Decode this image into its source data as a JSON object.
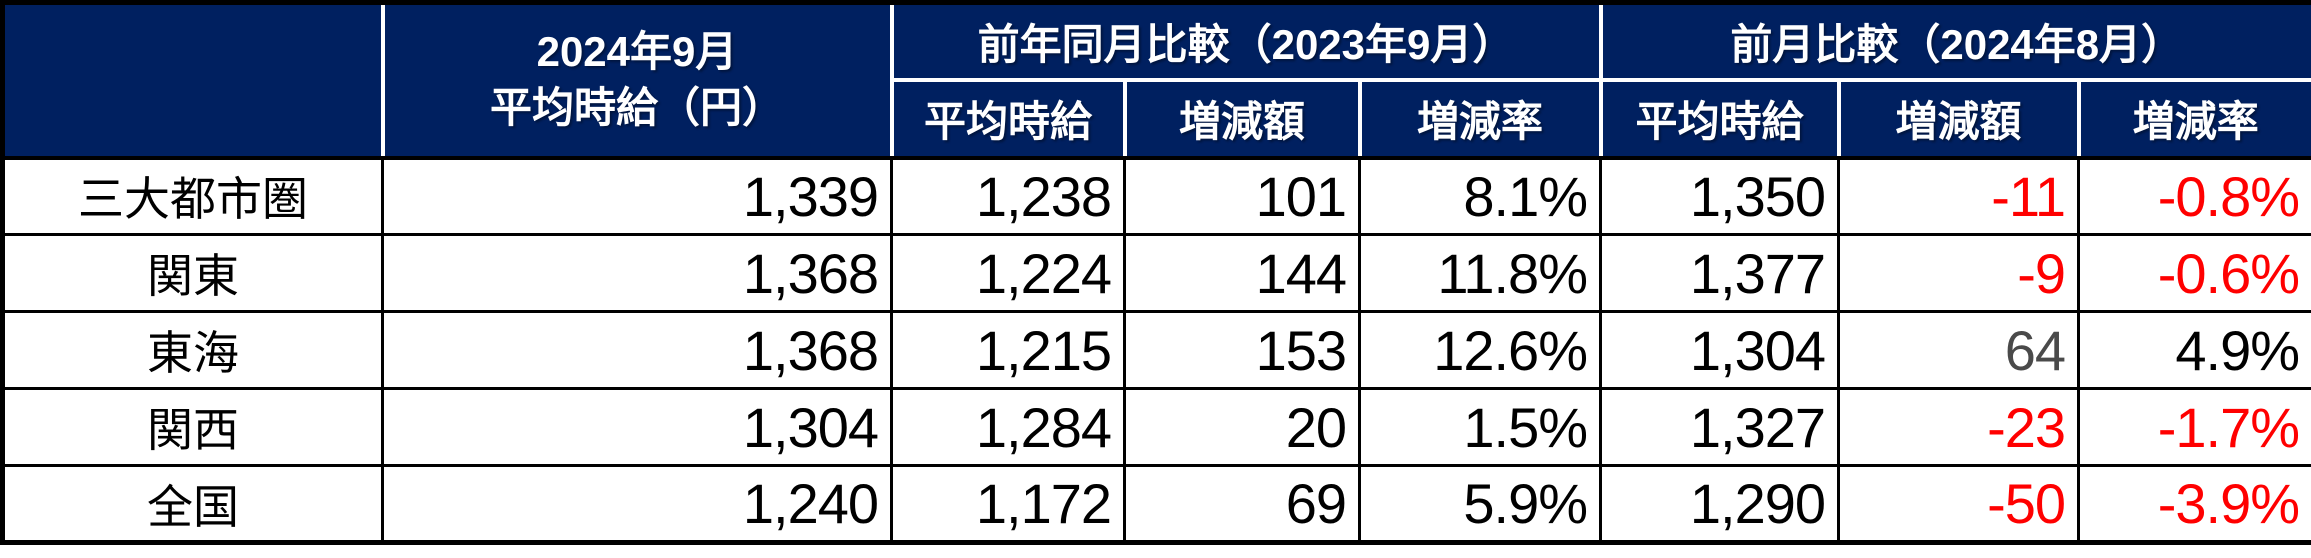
{
  "colors": {
    "header_bg": "#002060",
    "header_text": "#FFFFFF",
    "body_text": "#000000",
    "negative": "#FF0000",
    "muted": "#4a4a4a",
    "border": "#000000"
  },
  "chart_data": {
    "type": "table",
    "header": {
      "corner": "",
      "current": [
        "2024年9月",
        "平均時給（円）"
      ],
      "groups": [
        {
          "label": "前年同月比較（2023年9月）",
          "sub": [
            "平均時給",
            "増減額",
            "増減率"
          ]
        },
        {
          "label": "前月比較（2024年8月）",
          "sub": [
            "平均時給",
            "増減額",
            "増減率"
          ]
        }
      ]
    },
    "rows": [
      {
        "region": "三大都市圏",
        "values": [
          "1,339",
          "1,238",
          "101",
          "8.1%",
          "1,350",
          "-11",
          "-0.8%"
        ],
        "styles": [
          "num",
          "num",
          "num",
          "num",
          "num",
          "neg",
          "neg"
        ]
      },
      {
        "region": "関東",
        "values": [
          "1,368",
          "1,224",
          "144",
          "11.8%",
          "1,377",
          "-9",
          "-0.6%"
        ],
        "styles": [
          "num",
          "num",
          "num",
          "num",
          "num",
          "neg",
          "neg"
        ]
      },
      {
        "region": "東海",
        "values": [
          "1,368",
          "1,215",
          "153",
          "12.6%",
          "1,304",
          "64",
          "4.9%"
        ],
        "styles": [
          "num",
          "num",
          "num",
          "num",
          "num",
          "muted",
          "num"
        ]
      },
      {
        "region": "関西",
        "values": [
          "1,304",
          "1,284",
          "20",
          "1.5%",
          "1,327",
          "-23",
          "-1.7%"
        ],
        "styles": [
          "num",
          "num",
          "num",
          "num",
          "num",
          "neg",
          "neg"
        ]
      },
      {
        "region": "全国",
        "values": [
          "1,240",
          "1,172",
          "69",
          "5.9%",
          "1,290",
          "-50",
          "-3.9%"
        ],
        "styles": [
          "num",
          "num",
          "num",
          "num",
          "num",
          "neg",
          "neg"
        ]
      }
    ]
  }
}
